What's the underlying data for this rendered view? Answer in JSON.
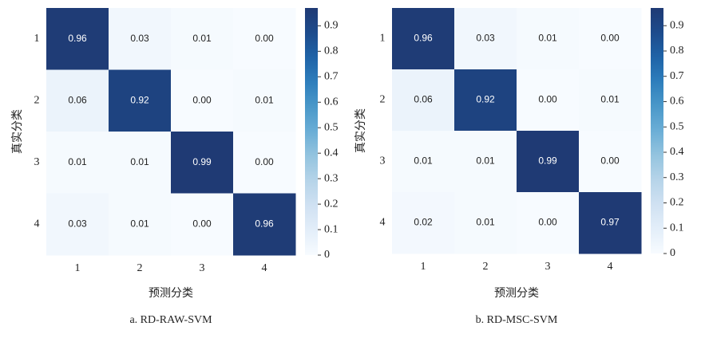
{
  "chart_data": [
    {
      "type": "heatmap",
      "caption": "a. RD-RAW-SVM",
      "xlabel": "预测分类",
      "ylabel": "真实分类",
      "x_categories": [
        "1",
        "2",
        "3",
        "4"
      ],
      "y_categories": [
        "1",
        "2",
        "3",
        "4"
      ],
      "values": [
        [
          0.96,
          0.03,
          0.01,
          0.0
        ],
        [
          0.06,
          0.92,
          0.0,
          0.01
        ],
        [
          0.01,
          0.01,
          0.99,
          0.0
        ],
        [
          0.03,
          0.01,
          0.0,
          0.96
        ]
      ],
      "value_labels": [
        [
          "0.96",
          "0.03",
          "0.01",
          "0.00"
        ],
        [
          "0.06",
          "0.92",
          "0.00",
          "0.01"
        ],
        [
          "0.01",
          "0.01",
          "0.99",
          "0.00"
        ],
        [
          "0.03",
          "0.01",
          "0.00",
          "0.96"
        ]
      ],
      "colormap": "Blues",
      "clim": [
        0,
        0.97
      ],
      "cticks": [
        0,
        0.1,
        0.2,
        0.3,
        0.4,
        0.5,
        0.6,
        0.7,
        0.8,
        0.9
      ]
    },
    {
      "type": "heatmap",
      "caption": "b. RD-MSC-SVM",
      "xlabel": "预测分类",
      "ylabel": "真实分类",
      "x_categories": [
        "1",
        "2",
        "3",
        "4"
      ],
      "y_categories": [
        "1",
        "2",
        "3",
        "4"
      ],
      "values": [
        [
          0.96,
          0.03,
          0.01,
          0.0
        ],
        [
          0.06,
          0.92,
          0.0,
          0.01
        ],
        [
          0.01,
          0.01,
          0.99,
          0.0
        ],
        [
          0.02,
          0.01,
          0.0,
          0.97
        ]
      ],
      "value_labels": [
        [
          "0.96",
          "0.03",
          "0.01",
          "0.00"
        ],
        [
          "0.06",
          "0.92",
          "0.00",
          "0.01"
        ],
        [
          "0.01",
          "0.01",
          "0.99",
          "0.00"
        ],
        [
          "0.02",
          "0.01",
          "0.00",
          "0.97"
        ]
      ],
      "colormap": "Blues",
      "clim": [
        0,
        0.97
      ],
      "cticks": [
        0,
        0.1,
        0.2,
        0.3,
        0.4,
        0.5,
        0.6,
        0.7,
        0.8,
        0.9
      ]
    }
  ]
}
